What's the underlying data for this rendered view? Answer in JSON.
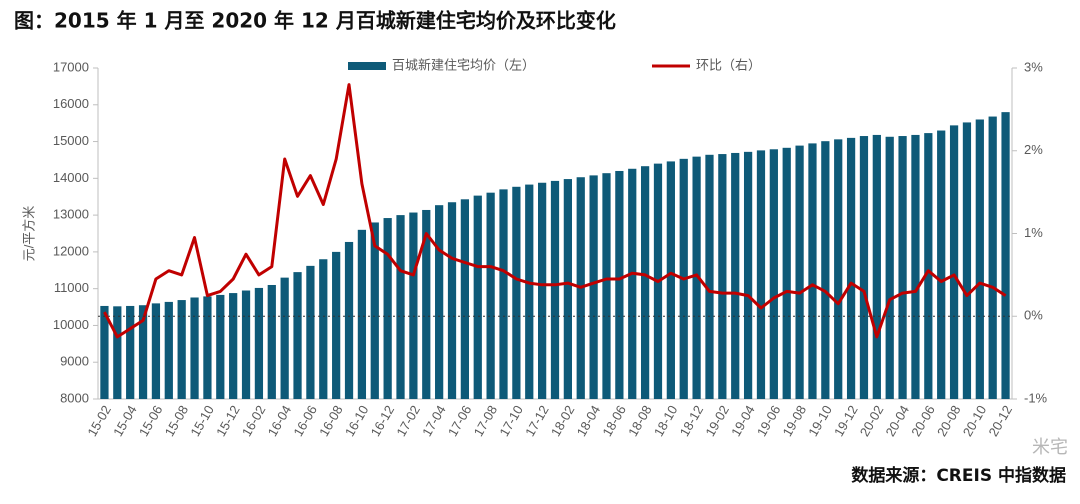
{
  "chart_data": {
    "type": "bar_line",
    "title": "图：2015 年 1 月至 2020 年 12 月百城新建住宅均价及环比变化",
    "y_label": "元/平方米",
    "source": "数据来源：CREIS 中指数据",
    "watermark": "米宅",
    "categories": [
      "15-02",
      null,
      "15-04",
      null,
      "15-06",
      null,
      "15-08",
      null,
      "15-10",
      null,
      "15-12",
      null,
      "16-02",
      null,
      "16-04",
      null,
      "16-06",
      null,
      "16-08",
      null,
      "16-10",
      null,
      "16-12",
      null,
      "17-02",
      null,
      "17-04",
      null,
      "17-06",
      null,
      "17-08",
      null,
      "17-10",
      null,
      "17-12",
      null,
      "18-02",
      null,
      "18-04",
      null,
      "18-06",
      null,
      "18-08",
      null,
      "18-10",
      null,
      "18-12",
      null,
      "19-02",
      null,
      "19-04",
      null,
      "19-06",
      null,
      "19-08",
      null,
      "19-10",
      null,
      "19-12",
      null,
      "20-02",
      null,
      "20-04",
      null,
      "20-06",
      null,
      "20-08",
      null,
      "20-10",
      null,
      "20-12"
    ],
    "series": [
      {
        "name": "百城新建住宅均价（左）",
        "type": "bar",
        "color": "#0e5a78",
        "values": [
          10530,
          10520,
          10530,
          10550,
          10600,
          10640,
          10690,
          10760,
          10790,
          10830,
          10880,
          10950,
          11020,
          11100,
          11300,
          11450,
          11620,
          11800,
          12000,
          12270,
          12600,
          12800,
          12920,
          13000,
          13070,
          13140,
          13270,
          13350,
          13430,
          13530,
          13610,
          13700,
          13770,
          13830,
          13880,
          13930,
          13980,
          14030,
          14080,
          14140,
          14200,
          14260,
          14330,
          14400,
          14460,
          14530,
          14590,
          14640,
          14660,
          14690,
          14720,
          14760,
          14790,
          14830,
          14890,
          14950,
          15010,
          15060,
          15100,
          15150,
          15180,
          15130,
          15150,
          15180,
          15230,
          15300,
          15440,
          15520,
          15600,
          15680,
          15800
        ]
      },
      {
        "name": "环比（右）",
        "type": "line",
        "axis": "y2",
        "color": "#c00000",
        "values": [
          0.05,
          -0.25,
          -0.15,
          -0.05,
          0.45,
          0.55,
          0.5,
          0.95,
          0.25,
          0.3,
          0.45,
          0.75,
          0.5,
          0.6,
          1.9,
          1.45,
          1.7,
          1.35,
          1.9,
          2.8,
          1.6,
          0.85,
          0.75,
          0.55,
          0.5,
          1.0,
          0.8,
          0.7,
          0.65,
          0.6,
          0.6,
          0.55,
          0.45,
          0.4,
          0.38,
          0.38,
          0.4,
          0.35,
          0.4,
          0.45,
          0.45,
          0.52,
          0.5,
          0.42,
          0.52,
          0.45,
          0.5,
          0.3,
          0.28,
          0.28,
          0.25,
          0.1,
          0.22,
          0.3,
          0.28,
          0.38,
          0.3,
          0.15,
          0.4,
          0.3,
          -0.25,
          0.2,
          0.28,
          0.3,
          0.55,
          0.42,
          0.5,
          0.25,
          0.4,
          0.35,
          0.25
        ]
      }
    ],
    "ylim": [
      8000,
      17000
    ],
    "yticks": [
      8000,
      9000,
      10000,
      11000,
      12000,
      13000,
      14000,
      15000,
      16000,
      17000
    ],
    "y2lim": [
      -1,
      3
    ],
    "y2ticks": [
      {
        "value": -1,
        "label": "-1%"
      },
      {
        "value": 0,
        "label": "0%"
      },
      {
        "value": 1,
        "label": "1%"
      },
      {
        "value": 2,
        "label": "2%"
      },
      {
        "value": 3,
        "label": "3%"
      }
    ],
    "legend": "top"
  }
}
